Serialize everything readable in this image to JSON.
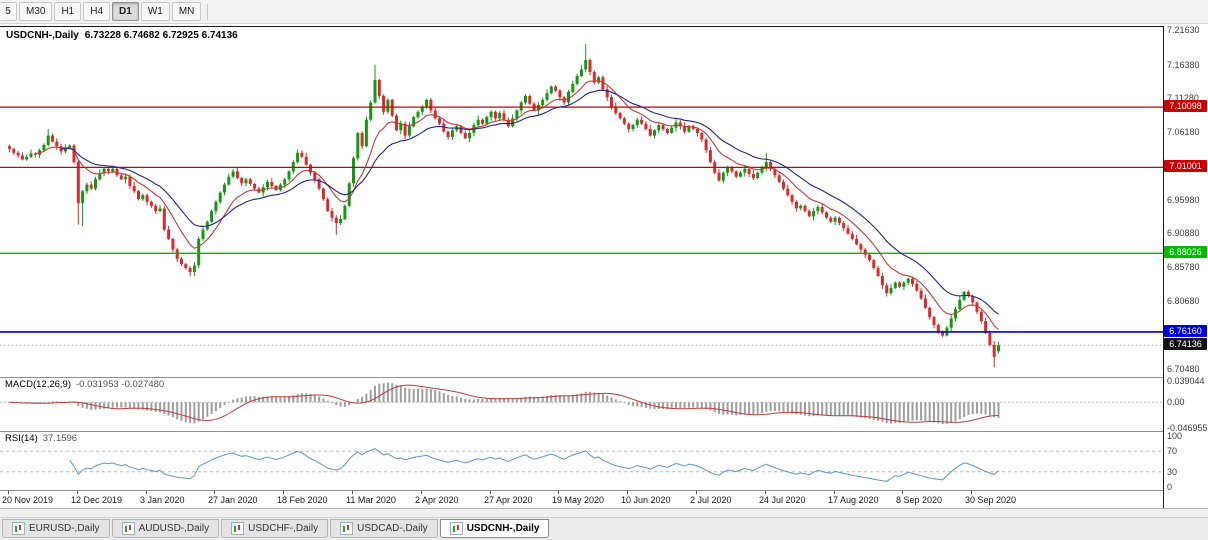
{
  "toolbar": {
    "periods": [
      {
        "label": "5",
        "active": false,
        "partial": true
      },
      {
        "label": "M30",
        "active": false
      },
      {
        "label": "H1",
        "active": false
      },
      {
        "label": "H4",
        "active": false
      },
      {
        "label": "D1",
        "active": true
      },
      {
        "label": "W1",
        "active": false
      },
      {
        "label": "MN",
        "active": false
      }
    ]
  },
  "tabs": [
    {
      "label": "EURUSD-,Daily",
      "active": false
    },
    {
      "label": "AUDUSD-,Daily",
      "active": false
    },
    {
      "label": "USDCHF-,Daily",
      "active": false
    },
    {
      "label": "USDCAD-,Daily",
      "active": false
    },
    {
      "label": "USDCNH-,Daily",
      "active": true
    }
  ],
  "chart_data": {
    "type": "candlestick",
    "symbol": "USDCNH",
    "timeframe": "Daily",
    "title": "USDCNH-,Daily",
    "ohlc_text": "6.73228 6.74682 6.72925 6.74136",
    "first_open": 7.042,
    "closes": [
      7.038,
      7.032,
      7.028,
      7.022,
      7.026,
      7.031,
      7.029,
      7.036,
      7.044,
      7.058,
      7.049,
      7.042,
      7.034,
      7.039,
      7.043,
      7.018,
      6.956,
      6.974,
      6.984,
      6.978,
      6.992,
      7.001,
      7.008,
      7.004,
      7.008,
      6.998,
      6.992,
      6.996,
      6.982,
      6.974,
      6.962,
      6.968,
      6.958,
      6.952,
      6.944,
      6.948,
      6.916,
      6.902,
      6.886,
      6.872,
      6.864,
      6.858,
      6.852,
      6.862,
      6.902,
      6.916,
      6.928,
      6.944,
      6.958,
      6.972,
      6.984,
      6.996,
      7.004,
      6.994,
      6.986,
      6.992,
      6.985,
      6.978,
      6.972,
      6.98,
      6.988,
      6.982,
      6.976,
      6.984,
      6.992,
      7.004,
      7.018,
      7.032,
      7.026,
      7.014,
      7.002,
      6.992,
      6.978,
      6.962,
      6.944,
      6.934,
      6.926,
      6.932,
      6.952,
      6.986,
      7.024,
      7.062,
      7.042,
      7.082,
      7.108,
      7.142,
      7.118,
      7.094,
      7.112,
      7.088,
      7.066,
      7.076,
      7.058,
      7.072,
      7.086,
      7.094,
      7.102,
      7.112,
      7.096,
      7.084,
      7.076,
      7.064,
      7.056,
      7.066,
      7.072,
      7.062,
      7.054,
      7.062,
      7.074,
      7.082,
      7.076,
      7.086,
      7.094,
      7.084,
      7.092,
      7.082,
      7.072,
      7.084,
      7.096,
      7.108,
      7.118,
      7.106,
      7.096,
      7.104,
      7.112,
      7.122,
      7.132,
      7.126,
      7.116,
      7.108,
      7.124,
      7.136,
      7.148,
      7.158,
      7.172,
      7.154,
      7.138,
      7.146,
      7.128,
      7.116,
      7.102,
      7.092,
      7.084,
      7.076,
      7.068,
      7.074,
      7.082,
      7.076,
      7.068,
      7.058,
      7.066,
      7.074,
      7.068,
      7.062,
      7.07,
      7.078,
      7.072,
      7.064,
      7.072,
      7.068,
      7.062,
      7.052,
      7.036,
      7.018,
      7.002,
      6.99,
      7.002,
      7.01,
      7.004,
      6.996,
      7.002,
      7.008,
      7.0,
      6.994,
      7.002,
      7.01,
      7.018,
      7.008,
      6.998,
      6.988,
      6.978,
      6.968,
      6.958,
      6.948,
      6.952,
      6.944,
      6.936,
      6.944,
      6.95,
      6.942,
      6.934,
      6.928,
      6.934,
      6.926,
      6.918,
      6.91,
      6.902,
      6.894,
      6.886,
      6.878,
      6.87,
      6.858,
      6.846,
      6.832,
      6.82,
      6.828,
      6.836,
      6.83,
      6.836,
      6.842,
      6.834,
      6.824,
      6.812,
      6.798,
      6.784,
      6.772,
      6.762,
      6.756,
      6.768,
      6.782,
      6.796,
      6.81,
      6.822,
      6.816,
      6.806,
      6.792,
      6.778,
      6.76,
      6.742,
      6.724,
      6.7414
    ],
    "wick_pattern": [
      4,
      7,
      3,
      9,
      5,
      2,
      8,
      4,
      6,
      3,
      10,
      5,
      3,
      7,
      4,
      8
    ],
    "specials": {
      "9": {
        "h": 7.068
      },
      "16": {
        "l": 6.9235
      },
      "17": {
        "l": 6.921
      },
      "42": {
        "l": 6.8455
      },
      "76": {
        "l": 6.908
      },
      "85": {
        "h": 7.165
      },
      "134": {
        "h": 7.196
      },
      "176": {
        "h": 7.032
      },
      "229": {
        "l": 6.708
      },
      "230": {
        "o": 6.73228,
        "h": 6.74682,
        "l": 6.72925,
        "c": 6.74136
      }
    },
    "price_range": {
      "max": 7.222,
      "min": 6.695
    },
    "x": {
      "left": 8,
      "spacing": 4.3,
      "body": 3,
      "label_every": 16
    },
    "colors": {
      "up": "#119a11",
      "down": "#d92b2b",
      "ma_fast": "#c23a3a",
      "ma_slow": "#24248f",
      "macd_hist": "#9e9e9e",
      "macd_signal": "#c23a3a",
      "rsi": "#5e97c9",
      "level_red": "#cc0000",
      "level_green": "#00bb00",
      "level_blue": "#0000dd"
    },
    "ma_periods": {
      "fast": 10,
      "slow": 21
    },
    "y_ticks": [
      "7.21630",
      "7.16380",
      "7.11280",
      "7.06180",
      "6.95980",
      "6.90880",
      "6.85780",
      "6.80680",
      "6.70480"
    ],
    "levels": [
      {
        "value": 7.10098,
        "label": "7.10098",
        "color": "#cc0000",
        "width": 1.2
      },
      {
        "value": 7.01001,
        "label": "7.01001",
        "color": "#cc0000",
        "width": 1.2
      },
      {
        "value": 6.88026,
        "label": "6.88026",
        "color": "#00bb00",
        "width": 1.4
      },
      {
        "value": 6.7616,
        "label": "6.76160",
        "color": "#0000dd",
        "width": 1.6
      }
    ],
    "current_price": {
      "value": 6.74136,
      "label": "6.74136",
      "color": "#111111"
    },
    "macd": {
      "label": "MACD(12,26,9)",
      "values_text": "-0.031953 -0.027480",
      "params": [
        12,
        26,
        9
      ],
      "axis": [
        "0.039044",
        "0.00",
        "-0.046955"
      ],
      "range": {
        "max": 0.045,
        "min": -0.053
      }
    },
    "rsi": {
      "label": "RSI(14)",
      "value_text": "37.1596",
      "period": 14,
      "axis": [
        "100",
        "70",
        "30",
        "0"
      ],
      "guide_levels": [
        70,
        30
      ]
    },
    "x_labels": [
      "20 Nov 2019",
      "12 Dec 2019",
      "3 Jan 2020",
      "27 Jan 2020",
      "18 Feb 2020",
      "11 Mar 2020",
      "2 Apr 2020",
      "27 Apr 2020",
      "19 May 2020",
      "10 Jun 2020",
      "2 Jul 2020",
      "24 Jul 2020",
      "17 Aug 2020",
      "8 Sep 2020",
      "30 Sep 2020"
    ]
  }
}
